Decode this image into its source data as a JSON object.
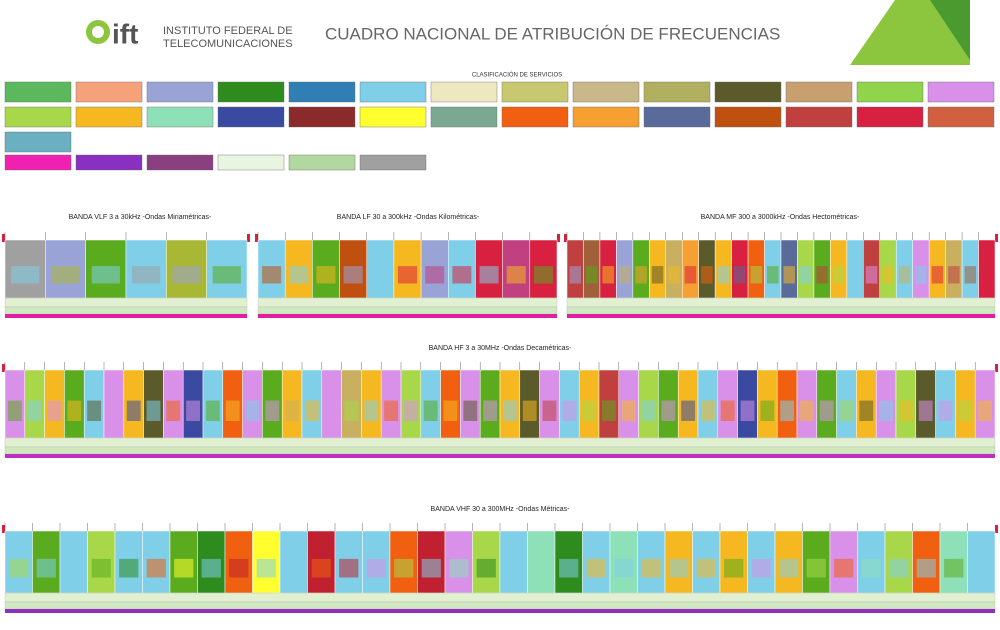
{
  "header": {
    "logo": "ift",
    "institute_line1": "INSTITUTO FEDERAL DE",
    "institute_line2": "TELECOMUNICACIONES",
    "title": "CUADRO NACIONAL DE ATRIBUCIÓN DE FRECUENCIAS"
  },
  "legend": {
    "title": "CLASIFICACIÓN DE SERVICIOS",
    "rows": [
      [
        "#5cb85c",
        "#f5a27a",
        "#9aa3d6",
        "#2e8b1e",
        "#2f7fb5",
        "#7fcfe8",
        "#eee8c0",
        "#c8c870",
        "#c8b88a",
        "#b0b060",
        "#5a5a2a",
        "#c8a070",
        "#8fd44a",
        "#d890e8"
      ],
      [
        "#a8d84a",
        "#f5b820",
        "#8ee0b8",
        "#3a4aa0",
        "#8b2a2a",
        "#ffff30",
        "#7aa890",
        "#f06010",
        "#f5a030",
        "#5a6a9a",
        "#c05010",
        "#c04040",
        "#d82040",
        "#d06040"
      ],
      [
        "#6ab0c0"
      ],
      [
        "#f020b0",
        "#8a30c0",
        "#8a4080",
        "#e8f5e0",
        "#b0d8a0",
        "#a0a0a0"
      ]
    ]
  },
  "bands": [
    {
      "title": "BANDA VLF 3 a 30kHz -Ondas Miriamétricas-",
      "colors": [
        "#a0a0a0",
        "#9aa3d6",
        "#5aab1e",
        "#7fcfe8",
        "#a9b834",
        "#7fcfe8"
      ]
    },
    {
      "title": "BANDA LF 30 a 300kHz -Ondas Kilométricas-",
      "colors": [
        "#7fcfe8",
        "#f5b820",
        "#5aab1e",
        "#c05010",
        "#7fcfe8",
        "#f5b820",
        "#9aa3d6",
        "#7fcfe8",
        "#d82040",
        "#c04080",
        "#d82040"
      ]
    },
    {
      "title": "BANDA MF 300 a 3000kHz -Ondas Hectométricas-",
      "colors": [
        "#c04040",
        "#a0603a",
        "#d82040",
        "#9aa3d6",
        "#5aab1e",
        "#f5b820",
        "#c8b060",
        "#f5a030",
        "#5a5a2a",
        "#f5b820",
        "#d82040",
        "#f06010",
        "#7fcfe8",
        "#5a6a9a",
        "#a8d84a",
        "#5aab1e",
        "#f5b820",
        "#7fcfe8",
        "#c04040",
        "#a8d84a",
        "#7fcfe8",
        "#d890e8",
        "#f5b820",
        "#c8b060",
        "#7fcfe8",
        "#d82040"
      ]
    },
    {
      "title": "BANDA HF 3 a 30MHz -Ondas Decamétricas-",
      "colors": [
        "#d890e8",
        "#a8d84a",
        "#f5b820",
        "#5aab1e",
        "#7fcfe8",
        "#d890e8",
        "#f5b820",
        "#5a5a2a",
        "#d890e8",
        "#3a4aa0",
        "#7fcfe8",
        "#f06010",
        "#d890e8",
        "#5aab1e",
        "#f5b820",
        "#7fcfe8",
        "#d890e8",
        "#c8b060",
        "#f5b820",
        "#d890e8",
        "#a8d84a",
        "#7fcfe8",
        "#f06010",
        "#d890e8",
        "#5aab1e",
        "#f5b820",
        "#5a5a2a",
        "#d890e8",
        "#7fcfe8",
        "#f5b820",
        "#c04040",
        "#d890e8",
        "#a8d84a",
        "#5aab1e",
        "#f5b820",
        "#7fcfe8",
        "#d890e8",
        "#3a4aa0",
        "#f5b820",
        "#f06010",
        "#d890e8",
        "#5aab1e",
        "#7fcfe8",
        "#f5b820",
        "#d890e8",
        "#a8d84a",
        "#5a5a2a",
        "#7fcfe8",
        "#f5b820",
        "#d890e8"
      ]
    },
    {
      "title": "BANDA VHF 30 a 300MHz -Ondas Métricas-",
      "colors": [
        "#7fcfe8",
        "#5aab1e",
        "#7fcfe8",
        "#a8d84a",
        "#7fcfe8",
        "#7fcfe8",
        "#5aab1e",
        "#2e8b1e",
        "#f06010",
        "#ffff30",
        "#7fcfe8",
        "#c02030",
        "#7fcfe8",
        "#7fcfe8",
        "#f06010",
        "#c02030",
        "#d890e8",
        "#a8d84a",
        "#7fcfe8",
        "#8ee0b8",
        "#2e8b1e",
        "#7fcfe8",
        "#8ee0b8",
        "#7fcfe8",
        "#f5b820",
        "#7fcfe8",
        "#f5b820",
        "#7fcfe8",
        "#f5b820",
        "#5aab1e",
        "#d890e8",
        "#7fcfe8",
        "#a8d84a",
        "#f06010",
        "#8ee0b8",
        "#7fcfe8"
      ]
    }
  ]
}
